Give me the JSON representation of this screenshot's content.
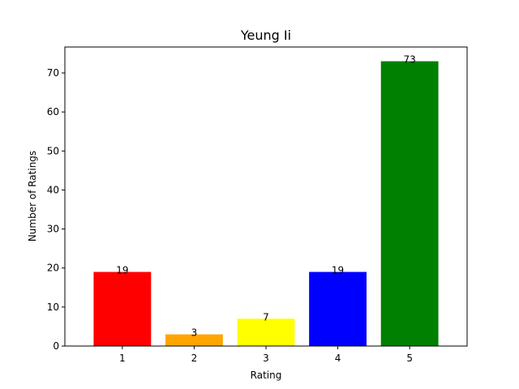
{
  "chart_data": {
    "type": "bar",
    "title": "Yeung Ii",
    "xlabel": "Rating",
    "ylabel": "Number of Ratings",
    "categories": [
      "1",
      "2",
      "3",
      "4",
      "5"
    ],
    "values": [
      19,
      3,
      7,
      19,
      73
    ],
    "colors": [
      "#ff0000",
      "#ffa500",
      "#ffff00",
      "#0000ff",
      "#008000"
    ],
    "ylim": [
      0,
      76.65
    ],
    "yticks": [
      0,
      10,
      20,
      30,
      40,
      50,
      60,
      70
    ],
    "grid": false,
    "legend": "none"
  }
}
